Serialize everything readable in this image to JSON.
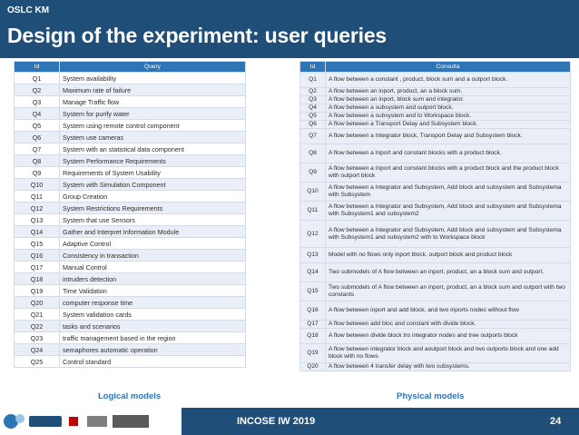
{
  "header": {
    "kicker": "OSLC KM",
    "title": "Design of the experiment: user queries"
  },
  "left_table": {
    "columns": [
      "Id",
      "Query"
    ],
    "rows": [
      {
        "id": "Q1",
        "text": "System availability"
      },
      {
        "id": "Q2",
        "text": "Maximum rate of failure"
      },
      {
        "id": "Q3",
        "text": "Manage Traffic flow"
      },
      {
        "id": "Q4",
        "text": "System for purify water"
      },
      {
        "id": "Q5",
        "text": "System using remote control component"
      },
      {
        "id": "Q6",
        "text": "System use cameras"
      },
      {
        "id": "Q7",
        "text": "System with an statistical data component"
      },
      {
        "id": "Q8",
        "text": "System Performance Requirements"
      },
      {
        "id": "Q9",
        "text": "Requirements of System Usability"
      },
      {
        "id": "Q10",
        "text": "System with Simulation Component"
      },
      {
        "id": "Q11",
        "text": "Group Creation"
      },
      {
        "id": "Q12",
        "text": "System Restrictions Requirements"
      },
      {
        "id": "Q13",
        "text": "System that use Sensors"
      },
      {
        "id": "Q14",
        "text": "Gather and Interpret Information Module"
      },
      {
        "id": "Q15",
        "text": "Adaptive Control"
      },
      {
        "id": "Q16",
        "text": "Consistency in transaction"
      },
      {
        "id": "Q17",
        "text": "Manual Control"
      },
      {
        "id": "Q18",
        "text": "intruders detection"
      },
      {
        "id": "Q19",
        "text": "Time Validation"
      },
      {
        "id": "Q20",
        "text": "computer response time"
      },
      {
        "id": "Q21",
        "text": "System validation cards"
      },
      {
        "id": "Q22",
        "text": "tasks and scenarios"
      },
      {
        "id": "Q23",
        "text": "traffic management based in the region"
      },
      {
        "id": "Q24",
        "text": "semaphores automatic operation"
      },
      {
        "id": "Q25",
        "text": "Control standard"
      }
    ]
  },
  "right_table": {
    "columns": [
      "Id",
      "Consulta"
    ],
    "rows": [
      {
        "id": "Q1",
        "text": "A flow between a constant , product, block sum and a outport block."
      },
      {
        "id": "Q2",
        "text": "A flow between an inport, product, an a block sum."
      },
      {
        "id": "Q3",
        "text": "A flow between an inport, block sum and integrator."
      },
      {
        "id": "Q4",
        "text": "A flow between a subsystem and outport block."
      },
      {
        "id": "Q5",
        "text": "A flow between a subsystem and to Workspace block."
      },
      {
        "id": "Q6",
        "text": "A flow between a Transport Delay and Subsystem block."
      },
      {
        "id": "Q7",
        "text": "A flow between a Integrator block, Transport Delay and Subsystem block."
      },
      {
        "id": "Q8",
        "text": "A flow between a Inport and constant blocks with a product block."
      },
      {
        "id": "Q9",
        "text": "A flow between a Inport and constant blocks with a product block and the product block with outport block"
      },
      {
        "id": "Q10",
        "text": "A flow between a Integrator and Subsystem, Add block and subsystem and Subsystema with Subsystem"
      },
      {
        "id": "Q11",
        "text": "A flow between a Integrator and Subsystem, Add block and subsystem and Subsystema with Subsystem1 and subsystem2"
      },
      {
        "id": "Q12",
        "text": "A flow between a Integrator and Subsystem, Add block and subsystem and Subsystema with Subsystem1 and subsystem2 with to Workspace block"
      },
      {
        "id": "Q13",
        "text": "Model with no flows only inport block, outport block and product block"
      },
      {
        "id": "Q14",
        "text": "Two submodels of A flow between an inport, product, an a block sum and outport."
      },
      {
        "id": "Q15",
        "text": "Two submodels of A flow between an inport, product, an a block sum and outport with two constants"
      },
      {
        "id": "Q16",
        "text": "A flow between inport and add block, and two inports nodes without flow"
      },
      {
        "id": "Q17",
        "text": "A flow between add bloc and constant with divide block."
      },
      {
        "id": "Q18",
        "text": "A flow between divide block tro integrator nodes and tree outports block"
      },
      {
        "id": "Q19",
        "text": "A flow between integrator block and aoutport block and two outports block and one add block with no flows"
      },
      {
        "id": "Q20",
        "text": "A flow between 4 transfer delay with two subsystems."
      }
    ]
  },
  "captions": {
    "left": "Logical models",
    "right": "Physical models"
  },
  "footer": {
    "text": "INCOSE IW 2019",
    "page": "24"
  },
  "colors": {
    "header_bg": "#1f4e79",
    "table_header_bg": "#2e75b6",
    "row_alt_bg": "#eaeff7",
    "caption": "#2e75b6"
  }
}
